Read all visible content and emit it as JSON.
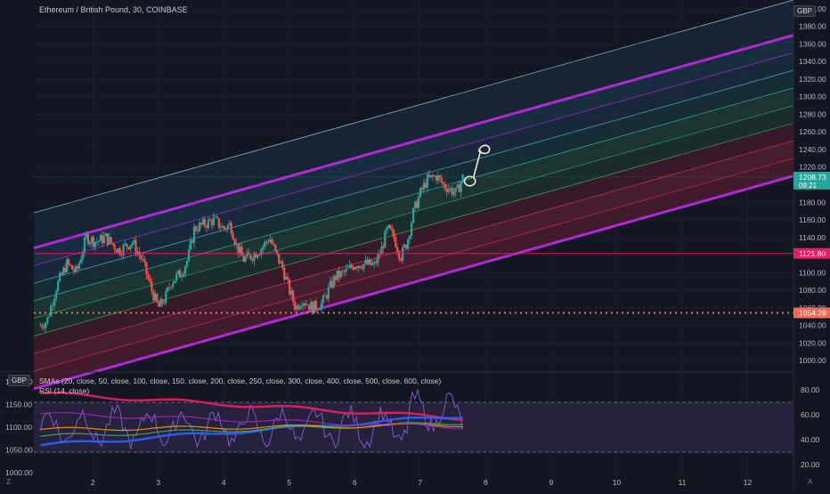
{
  "header": {
    "title": "Ethereum / British Pound, 30, COINBASE",
    "currency_badge": "GBP"
  },
  "indicators": {
    "sma_label": "SMAs (20, close, 50, close, 100, close, 150, close, 200, close, 250, close, 300, close, 400, close, 500, close, 600, close)",
    "rsi_label": "RSI (14, close)",
    "currency_badge": "GBP"
  },
  "footer": {
    "left_button": "Z",
    "right_button": "A"
  },
  "price_tags": {
    "current_price": "1208.73",
    "countdown": "09:21",
    "level_1": "1121.80",
    "level_2": "1054.29"
  },
  "colors": {
    "background": "#131722",
    "candle_up": "#26a69a",
    "candle_down": "#ef5350",
    "channel_outer": "#b02bd6",
    "channel_top": "#9fd4f5",
    "level_1": "#e91e63",
    "level_2": "#f06a5a",
    "rsi_band": "#7e57c2"
  },
  "chart_data": [
    {
      "type": "candlestick",
      "title": "Ethereum / British Pound, 30, COINBASE",
      "x_tick_labels": [
        "2",
        "3",
        "4",
        "5",
        "6",
        "7",
        "8",
        "9",
        "10",
        "11",
        "12"
      ],
      "y_tick_labels": [
        "1000.00",
        "1020.00",
        "1040.00",
        "1060.00",
        "1080.00",
        "1100.00",
        "1120.00",
        "1140.00",
        "1160.00",
        "1180.00",
        "1200.00",
        "1220.00",
        "1240.00",
        "1260.00",
        "1280.00",
        "1300.00",
        "1320.00",
        "1340.00",
        "1360.00",
        "1380.00",
        "1400.00"
      ],
      "ylim": [
        990,
        1410
      ],
      "xlim": [
        1.1,
        12.7
      ],
      "close_path": [
        [
          1.2,
          1040
        ],
        [
          1.3,
          1045
        ],
        [
          1.45,
          1085
        ],
        [
          1.6,
          1110
        ],
        [
          1.75,
          1100
        ],
        [
          1.9,
          1140
        ],
        [
          2.05,
          1135
        ],
        [
          2.2,
          1140
        ],
        [
          2.4,
          1125
        ],
        [
          2.6,
          1135
        ],
        [
          2.75,
          1115
        ],
        [
          2.9,
          1080
        ],
        [
          3.0,
          1060
        ],
        [
          3.1,
          1070
        ],
        [
          3.2,
          1090
        ],
        [
          3.35,
          1100
        ],
        [
          3.45,
          1115
        ],
        [
          3.55,
          1150
        ],
        [
          3.7,
          1155
        ],
        [
          3.85,
          1160
        ],
        [
          4.0,
          1150
        ],
        [
          4.1,
          1155
        ],
        [
          4.2,
          1130
        ],
        [
          4.3,
          1115
        ],
        [
          4.45,
          1120
        ],
        [
          4.6,
          1130
        ],
        [
          4.7,
          1140
        ],
        [
          4.8,
          1120
        ],
        [
          4.9,
          1105
        ],
        [
          5.0,
          1080
        ],
        [
          5.1,
          1060
        ],
        [
          5.2,
          1070
        ],
        [
          5.35,
          1060
        ],
        [
          5.5,
          1065
        ],
        [
          5.6,
          1080
        ],
        [
          5.7,
          1095
        ],
        [
          5.85,
          1100
        ],
        [
          6.0,
          1110
        ],
        [
          6.15,
          1110
        ],
        [
          6.3,
          1108
        ],
        [
          6.4,
          1125
        ],
        [
          6.5,
          1150
        ],
        [
          6.6,
          1140
        ],
        [
          6.7,
          1118
        ],
        [
          6.8,
          1135
        ],
        [
          6.9,
          1170
        ],
        [
          7.0,
          1190
        ],
        [
          7.1,
          1205
        ],
        [
          7.25,
          1210
        ],
        [
          7.35,
          1200
        ],
        [
          7.45,
          1195
        ],
        [
          7.55,
          1190
        ],
        [
          7.65,
          1208
        ]
      ],
      "horizontal_levels": [
        1121.8,
        1054.29
      ],
      "current_price": 1208.73,
      "regression_channel": {
        "center_start": [
          1.1,
          1048
        ],
        "center_end": [
          12.7,
          1290
        ],
        "band_offsets": [
          -80,
          -60,
          -40,
          -20,
          0,
          20,
          40,
          60,
          80,
          120
        ]
      }
    },
    {
      "type": "line",
      "title": "SMAs (20, close, 50, close, 100, close, 150, close, 200, close, 250, close, 300, close, 400, close, 500, close, 600, close)",
      "y_tick_labels": [
        "1000.00",
        "1050.00",
        "1100.00",
        "1150.00",
        "1200.00"
      ],
      "ylim": [
        990,
        1210
      ]
    },
    {
      "type": "line",
      "title": "RSI (14, close)",
      "y_tick_labels": [
        "20.00",
        "40.00",
        "60.00",
        "80.00"
      ],
      "ylim": [
        10,
        90
      ],
      "band": [
        30,
        70
      ]
    }
  ]
}
